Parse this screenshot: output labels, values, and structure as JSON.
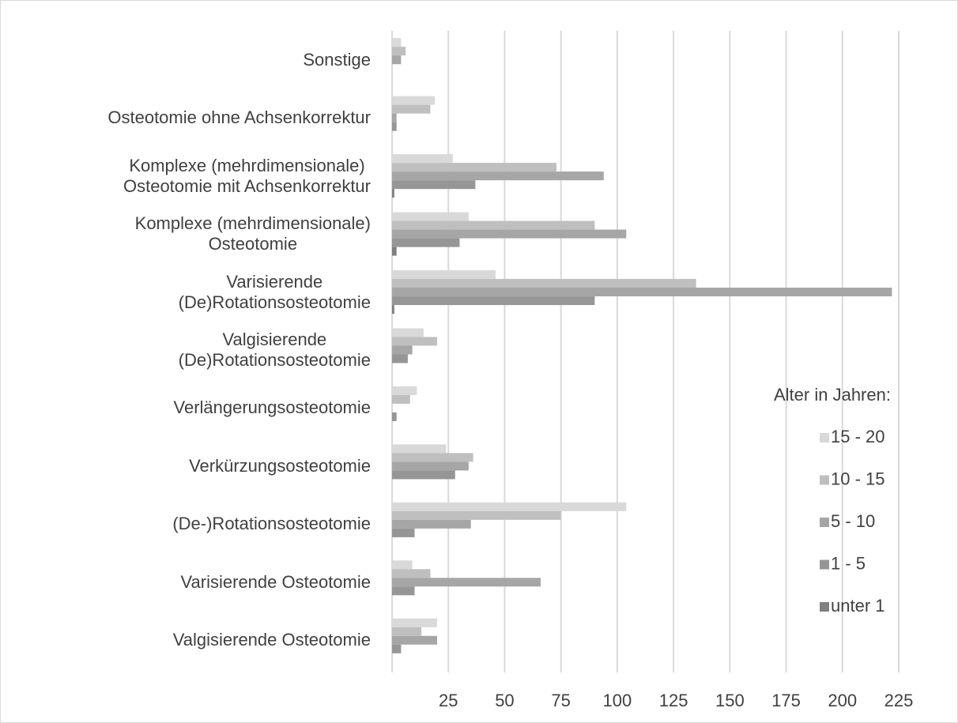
{
  "chart_data": {
    "type": "bar",
    "orientation": "horizontal",
    "categories": [
      "Sonstige",
      "Osteotomie ohne Achsenkorrektur",
      "Komplexe (mehrdimensionale)\nOsteotomie mit Achsenkorrektur",
      "Komplexe (mehrdimensionale)\nOsteotomie",
      "Varisierende\n(De)Rotationsosteotomie",
      "Valgisierende\n(De)Rotationsosteotomie",
      "Verlängerungsosteotomie",
      "Verkürzungsosteotomie",
      "(De-)Rotationsosteotomie",
      "Varisierende Osteotomie",
      "Valgisierende Osteotomie"
    ],
    "series": [
      {
        "name": "15 - 20",
        "color": "#d9d9d9",
        "values": [
          4,
          19,
          27,
          34,
          46,
          14,
          11,
          24,
          104,
          9,
          20
        ]
      },
      {
        "name": "10 - 15",
        "color": "#bfbfbf",
        "values": [
          6,
          17,
          73,
          90,
          135,
          20,
          8,
          36,
          75,
          17,
          13
        ]
      },
      {
        "name": "5 - 10",
        "color": "#a6a6a6",
        "values": [
          4,
          2,
          94,
          104,
          222,
          9,
          0,
          34,
          35,
          66,
          20
        ]
      },
      {
        "name": "1 - 5",
        "color": "#969696",
        "values": [
          0,
          2,
          37,
          30,
          90,
          7,
          2,
          28,
          10,
          10,
          4
        ]
      },
      {
        "name": "unter 1",
        "color": "#808080",
        "values": [
          0,
          0,
          1,
          2,
          1,
          0,
          0,
          0,
          0,
          0,
          0
        ]
      }
    ],
    "legend_title": "Alter in Jahren:",
    "xlim": [
      0,
      225
    ],
    "xticks": [
      25,
      50,
      75,
      100,
      125,
      150,
      175,
      200,
      225
    ],
    "grid": true
  }
}
